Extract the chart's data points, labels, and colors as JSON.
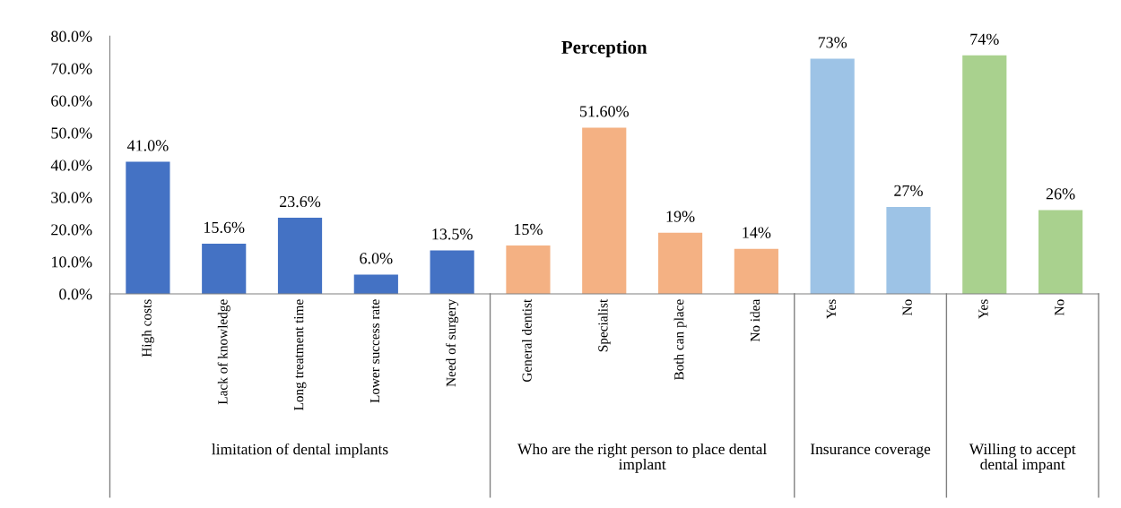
{
  "chart_data": {
    "type": "bar",
    "title": "Perception",
    "categories": [
      "High costs",
      "Lack of knowledge",
      "Long treatment time",
      "Lower success rate",
      "Need of surgery",
      "General dentist",
      "Specialist",
      "Both can place",
      "No idea",
      "Yes",
      "No",
      "Yes",
      "No"
    ],
    "values": [
      41.0,
      15.6,
      23.6,
      6.0,
      13.5,
      15,
      51.6,
      19,
      14,
      73,
      27,
      74,
      26
    ],
    "colors": [
      "#4472c4",
      "#4472c4",
      "#4472c4",
      "#4472c4",
      "#4472c4",
      "#f4b183",
      "#f4b183",
      "#f4b183",
      "#f4b183",
      "#9dc3e6",
      "#9dc3e6",
      "#a9d18e",
      "#a9d18e"
    ],
    "value_labels": [
      "41.0%",
      "15.6%",
      "23.6%",
      "6.0%",
      "13.5%",
      "15%",
      "51.60%",
      "19%",
      "14%",
      "73%",
      "27%",
      "74%",
      "26%"
    ],
    "annotations": [
      "limitation of dental implants",
      "Who are the right person to place dental implant",
      "Insurance coverage",
      "Willing to accept dental impant"
    ],
    "ylim": [
      0,
      80
    ],
    "yticks": [
      {
        "value": 0,
        "label": "0.0%"
      },
      {
        "value": 10,
        "label": "10.0%"
      },
      {
        "value": 20,
        "label": "20.0%"
      },
      {
        "value": 30,
        "label": "30.0%"
      },
      {
        "value": 40,
        "label": "40.0%"
      },
      {
        "value": 50,
        "label": "50.0%"
      },
      {
        "value": 60,
        "label": "60.0%"
      },
      {
        "value": 70,
        "label": "70.0%"
      },
      {
        "value": 80,
        "label": "80.0%"
      }
    ],
    "grid": false
  }
}
